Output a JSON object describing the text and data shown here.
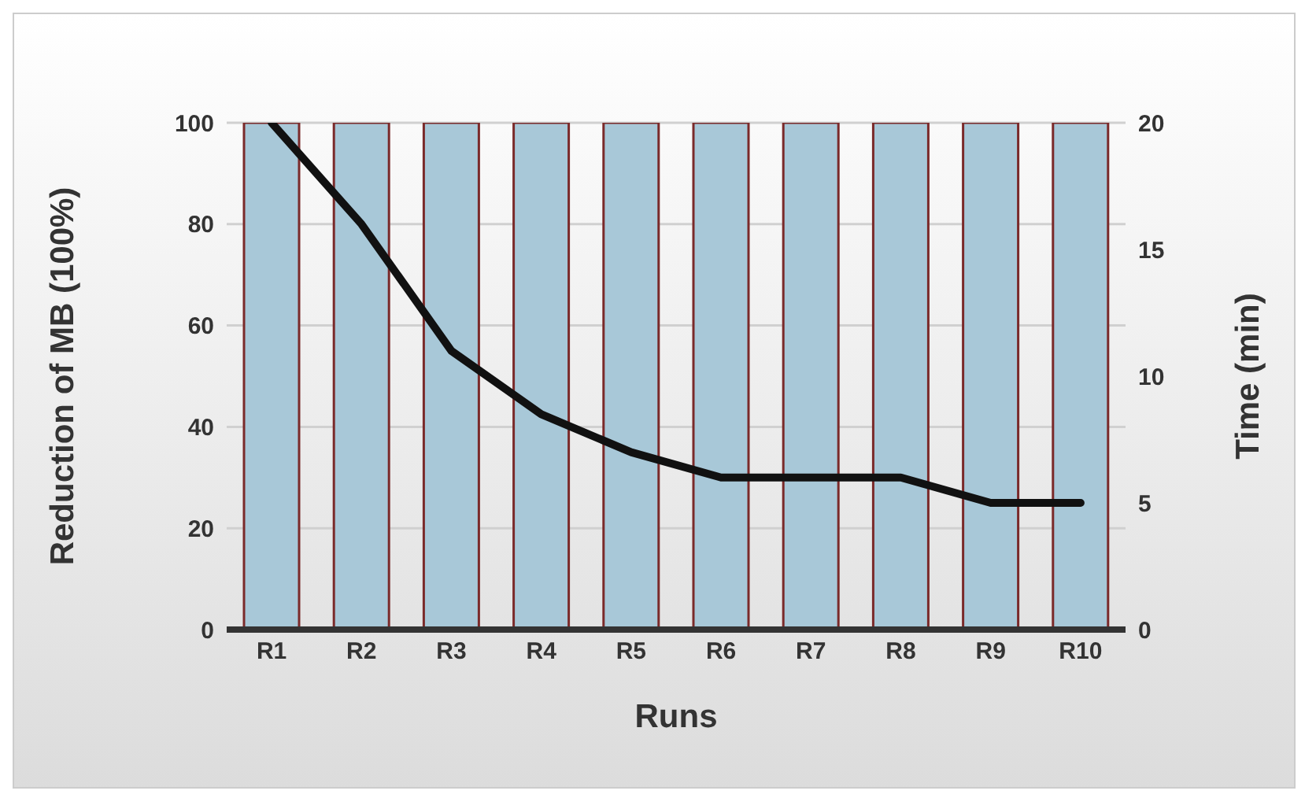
{
  "chart_data": {
    "type": "bar",
    "xlabel": "Runs",
    "ylabel": "Reduction of MB (100%)",
    "y2label": "Time (min)",
    "categories": [
      "R1",
      "R2",
      "R3",
      "R4",
      "R5",
      "R6",
      "R7",
      "R8",
      "R9",
      "R10"
    ],
    "series": [
      {
        "color": "#a8c8d8",
        "values": [
          100,
          100,
          100,
          100,
          100,
          100,
          100,
          100,
          100,
          100
        ]
      },
      {
        "type": "line",
        "axis": "y2",
        "color": "#111111",
        "values": [
          20,
          16,
          11,
          8.5,
          7,
          6,
          6,
          6,
          5,
          5
        ]
      }
    ],
    "ylim": [
      0,
      100
    ],
    "yticks": [
      0,
      20,
      40,
      60,
      80,
      100
    ],
    "y2lim": [
      0,
      20
    ],
    "y2ticks": [
      0,
      5,
      10,
      15,
      20
    ],
    "grid": "y",
    "legend": false,
    "marker": "none",
    "line_style": "solid"
  }
}
